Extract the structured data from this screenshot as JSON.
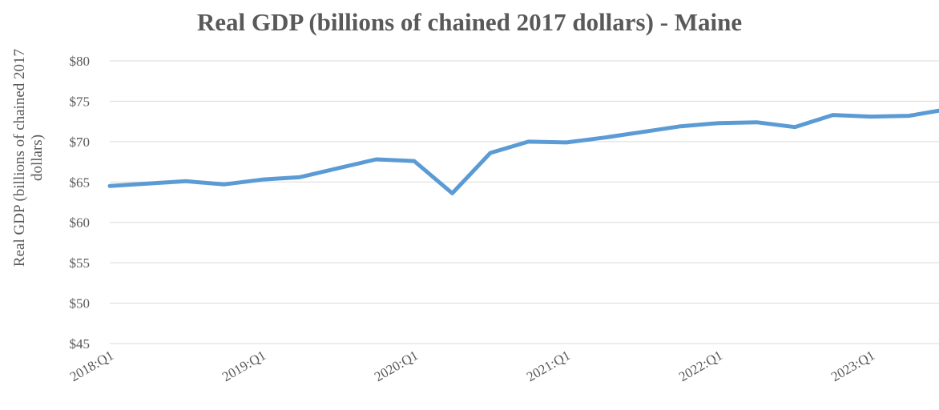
{
  "chart_data": {
    "type": "line",
    "title": "Real GDP (billions of chained 2017 dollars) - Maine",
    "xlabel": "",
    "ylabel": "Real GDP (billions of chained 2017 dollars)",
    "ylim": [
      45,
      80
    ],
    "y_ticks": [
      45,
      50,
      55,
      60,
      65,
      70,
      75,
      80
    ],
    "y_tick_labels": [
      "$45",
      "$50",
      "$55",
      "$60",
      "$65",
      "$70",
      "$75",
      "$80"
    ],
    "x_tick_labels": [
      "2018:Q1",
      "2019:Q1",
      "2020:Q1",
      "2021:Q1",
      "2022:Q1",
      "2023:Q1"
    ],
    "grid": true,
    "legend": "none",
    "line_color": "#5b9bd5",
    "categories": [
      "2018:Q1",
      "2018:Q2",
      "2018:Q3",
      "2018:Q4",
      "2019:Q1",
      "2019:Q2",
      "2019:Q3",
      "2019:Q4",
      "2020:Q1",
      "2020:Q2",
      "2020:Q3",
      "2020:Q4",
      "2021:Q1",
      "2021:Q2",
      "2021:Q3",
      "2021:Q4",
      "2022:Q1",
      "2022:Q2",
      "2022:Q3",
      "2022:Q4",
      "2023:Q1",
      "2023:Q2",
      "2023:Q3"
    ],
    "series": [
      {
        "values": [
          64.5,
          64.8,
          65.1,
          64.7,
          65.3,
          65.6,
          66.7,
          67.8,
          67.6,
          63.6,
          68.6,
          70.0,
          69.9,
          70.5,
          71.2,
          71.9,
          72.3,
          72.4,
          71.8,
          73.3,
          73.1,
          73.2,
          74.0
        ]
      }
    ]
  }
}
